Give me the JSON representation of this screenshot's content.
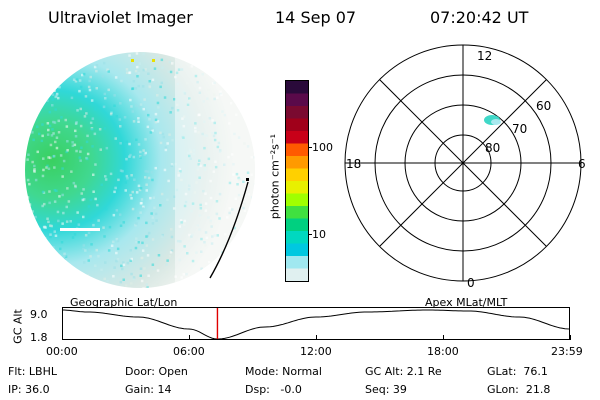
{
  "header": {
    "instrument": "Ultraviolet Imager",
    "date": "14 Sep 07",
    "time": "07:20:42 UT"
  },
  "colorbar": {
    "unit_label": "photon cm⁻²s⁻¹",
    "ticks": [
      "100",
      "10"
    ],
    "colors": [
      "#2a0a3a",
      "#5a0a4a",
      "#7a0a30",
      "#a0001a",
      "#c80018",
      "#ff5a00",
      "#ff9a00",
      "#ffd000",
      "#e8f000",
      "#a0ff00",
      "#40e040",
      "#00d080",
      "#00d8c0",
      "#00c8e0",
      "#a0e8f0",
      "#e0f0f0"
    ]
  },
  "polar_plot": {
    "mlt_labels": {
      "top": "12",
      "left": "18",
      "right": "6",
      "bottom": "0"
    },
    "lat_labels": [
      "60",
      "70",
      "80"
    ]
  },
  "timeline": {
    "left_title": "Geographic Lat/Lon",
    "right_title": "Apex MLat/MLT",
    "axis_label": "GC Alt",
    "y_ticks": [
      "9.0",
      "1.8"
    ],
    "x_ticks": [
      "00:00",
      "06:00",
      "12:00",
      "18:00",
      "23:59"
    ],
    "current_time_fraction": 0.306
  },
  "status": {
    "flt": "Flt: LBHL",
    "ip": "IP: 36.0",
    "door": "Door: Open",
    "gain": "Gain: 14",
    "mode": "Mode: Normal",
    "dsp": "Dsp:   -0.0",
    "gcalt": "GC Alt: 2.1 Re",
    "seq": "Seq: 39",
    "glat": "GLat:  76.1",
    "glon": "GLon:  21.8"
  }
}
